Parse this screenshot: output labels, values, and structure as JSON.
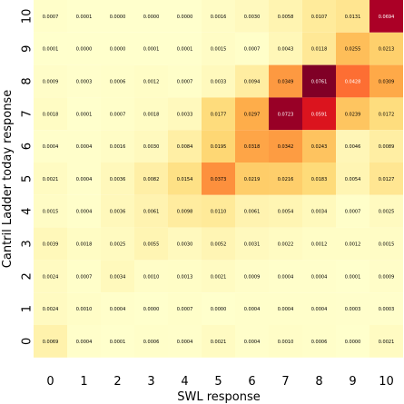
{
  "chart_data": {
    "type": "heatmap",
    "title": "",
    "xlabel": "SWL response",
    "ylabel": "Cantril Ladder today response",
    "x_categories": [
      "0",
      "1",
      "2",
      "3",
      "4",
      "5",
      "6",
      "7",
      "8",
      "9",
      "10"
    ],
    "y_categories": [
      "0",
      "1",
      "2",
      "3",
      "4",
      "5",
      "6",
      "7",
      "8",
      "9",
      "10"
    ],
    "colormap": "YlOrRd",
    "vmax": 0.0761,
    "rows": [
      {
        "y": "10",
        "values": [
          "0.0007",
          "0.0001",
          "0.0000",
          "0.0000",
          "0.0000",
          "0.0016",
          "0.0030",
          "0.0058",
          "0.0107",
          "0.0131",
          "0.0694"
        ]
      },
      {
        "y": "9",
        "values": [
          "0.0001",
          "0.0000",
          "0.0000",
          "0.0001",
          "0.0001",
          "0.0015",
          "0.0007",
          "0.0043",
          "0.0118",
          "0.0255",
          "0.0213"
        ]
      },
      {
        "y": "8",
        "values": [
          "0.0009",
          "0.0003",
          "0.0006",
          "0.0012",
          "0.0007",
          "0.0033",
          "0.0094",
          "0.0349",
          "0.0761",
          "0.0428",
          "0.0309"
        ]
      },
      {
        "y": "7",
        "values": [
          "0.0018",
          "0.0001",
          "0.0007",
          "0.0018",
          "0.0033",
          "0.0177",
          "0.0297",
          "0.0723",
          "0.0591",
          "0.0239",
          "0.0172"
        ]
      },
      {
        "y": "6",
        "values": [
          "0.0004",
          "0.0004",
          "0.0016",
          "0.0030",
          "0.0084",
          "0.0195",
          "0.0318",
          "0.0342",
          "0.0243",
          "0.0046",
          "0.0089"
        ]
      },
      {
        "y": "5",
        "values": [
          "0.0021",
          "0.0004",
          "0.0036",
          "0.0082",
          "0.0154",
          "0.0373",
          "0.0219",
          "0.0216",
          "0.0183",
          "0.0054",
          "0.0127"
        ]
      },
      {
        "y": "4",
        "values": [
          "0.0015",
          "0.0004",
          "0.0036",
          "0.0061",
          "0.0098",
          "0.0110",
          "0.0061",
          "0.0054",
          "0.0034",
          "0.0007",
          "0.0025"
        ]
      },
      {
        "y": "3",
        "values": [
          "0.0039",
          "0.0018",
          "0.0025",
          "0.0055",
          "0.0030",
          "0.0052",
          "0.0031",
          "0.0022",
          "0.0012",
          "0.0012",
          "0.0015"
        ]
      },
      {
        "y": "2",
        "values": [
          "0.0024",
          "0.0007",
          "0.0034",
          "0.0010",
          "0.0013",
          "0.0021",
          "0.0009",
          "0.0004",
          "0.0004",
          "0.0001",
          "0.0009"
        ]
      },
      {
        "y": "1",
        "values": [
          "0.0024",
          "0.0010",
          "0.0004",
          "0.0000",
          "0.0007",
          "0.0000",
          "0.0004",
          "0.0004",
          "0.0004",
          "0.0003",
          "0.0003"
        ]
      },
      {
        "y": "0",
        "values": [
          "0.0069",
          "0.0004",
          "0.0001",
          "0.0006",
          "0.0004",
          "0.0021",
          "0.0004",
          "0.0010",
          "0.0006",
          "0.0000",
          "0.0021"
        ]
      }
    ]
  }
}
